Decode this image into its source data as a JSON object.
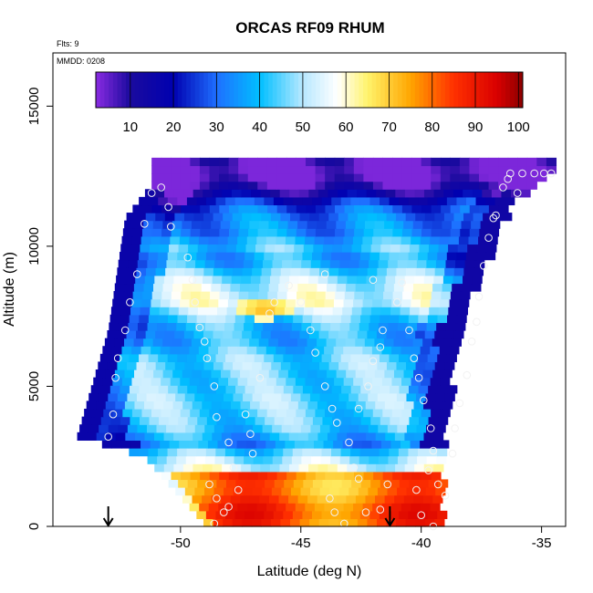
{
  "chart_data": {
    "type": "heatmap",
    "title": "ORCAS RF09 RHUM",
    "annotations": [
      "Flts: 9",
      "MMDD: 0208"
    ],
    "xlabel": "Latitude (deg N)",
    "ylabel": "Altitude (m)",
    "xlim": [
      -55.3,
      -34.0
    ],
    "ylim": [
      0,
      16900
    ],
    "x_ticks": [
      -50,
      -45,
      -40,
      -35
    ],
    "x_tick_labels": [
      "-50",
      "-45",
      "-40",
      "-35"
    ],
    "y_ticks": [
      0,
      5000,
      10000,
      15000
    ],
    "y_tick_labels": [
      "0",
      "5000",
      "10000",
      "15000"
    ],
    "colorbar": {
      "min": 2,
      "max": 101,
      "ticks": [
        10,
        20,
        30,
        40,
        50,
        60,
        70,
        80,
        90,
        100
      ],
      "tick_labels": [
        "10",
        "20",
        "30",
        "40",
        "50",
        "60",
        "70",
        "80",
        "90",
        "100"
      ],
      "stops": [
        {
          "v": 2,
          "color": "#8a2be2"
        },
        {
          "v": 10,
          "color": "#1a0a9e"
        },
        {
          "v": 20,
          "color": "#0000b0"
        },
        {
          "v": 30,
          "color": "#1e6fff"
        },
        {
          "v": 40,
          "color": "#00bfff"
        },
        {
          "v": 50,
          "color": "#b8e8ff"
        },
        {
          "v": 58,
          "color": "#ffffff"
        },
        {
          "v": 65,
          "color": "#fff36b"
        },
        {
          "v": 75,
          "color": "#ffa500"
        },
        {
          "v": 85,
          "color": "#ff3000"
        },
        {
          "v": 95,
          "color": "#d90000"
        },
        {
          "v": 101,
          "color": "#8b0000"
        }
      ]
    },
    "domain_envelope": {
      "left_boundary": [
        [
          -54.3,
          3200
        ],
        [
          -53.0,
          7000
        ],
        [
          -52.3,
          11000
        ],
        [
          -51.2,
          12200
        ]
      ],
      "right_boundary": [
        [
          -34.6,
          12700
        ],
        [
          -36.4,
          11500
        ],
        [
          -38.6,
          7000
        ],
        [
          -39.3,
          2000
        ],
        [
          -39.2,
          0
        ]
      ],
      "bottom_left": [
        [
          -54.3,
          3200
        ],
        [
          -51.5,
          2500
        ],
        [
          -48.9,
          0
        ]
      ]
    },
    "field_profile": {
      "altitude": [
        0,
        500,
        1000,
        1500,
        2000,
        2500,
        3000,
        3500,
        4000,
        4500,
        5000,
        5500,
        6000,
        6500,
        7000,
        7500,
        8000,
        8500,
        9000,
        9500,
        10000,
        10500,
        11000,
        11500,
        12000,
        12600
      ],
      "rhum": [
        82,
        86,
        88,
        78,
        62,
        50,
        30,
        38,
        45,
        52,
        48,
        42,
        40,
        38,
        44,
        50,
        54,
        48,
        44,
        40,
        48,
        35,
        28,
        22,
        12,
        5
      ]
    },
    "moist_layer_feature": {
      "lat": -46.5,
      "alt": 7800,
      "peak_rhum": 75
    },
    "flight_points": [
      [
        -53.0,
        3200
      ],
      [
        -52.8,
        4000
      ],
      [
        -52.7,
        5300
      ],
      [
        -52.6,
        6000
      ],
      [
        -52.3,
        7000
      ],
      [
        -52.1,
        8000
      ],
      [
        -51.8,
        9000
      ],
      [
        -51.5,
        10800
      ],
      [
        -51.2,
        11900
      ],
      [
        -50.8,
        12100
      ],
      [
        -50.5,
        11400
      ],
      [
        -50.4,
        10700
      ],
      [
        -49.7,
        9600
      ],
      [
        -49.5,
        8800
      ],
      [
        -49.4,
        8000
      ],
      [
        -49.2,
        7100
      ],
      [
        -49.0,
        6600
      ],
      [
        -48.9,
        6000
      ],
      [
        -48.6,
        5000
      ],
      [
        -48.5,
        3900
      ],
      [
        -48.0,
        3000
      ],
      [
        -47.8,
        2100
      ],
      [
        -48.8,
        1500
      ],
      [
        -48.5,
        1000
      ],
      [
        -48.2,
        500
      ],
      [
        -48.6,
        100
      ],
      [
        -48.0,
        700
      ],
      [
        -47.6,
        1300
      ],
      [
        -47.3,
        4000
      ],
      [
        -47.1,
        3300
      ],
      [
        -47.0,
        2600
      ],
      [
        -46.7,
        5300
      ],
      [
        -46.3,
        7600
      ],
      [
        -46.1,
        8000
      ],
      [
        -45.5,
        8600
      ],
      [
        -45.0,
        8000
      ],
      [
        -44.6,
        7000
      ],
      [
        -44.4,
        6200
      ],
      [
        -44.0,
        5000
      ],
      [
        -43.7,
        4200
      ],
      [
        -43.5,
        3700
      ],
      [
        -43.0,
        3000
      ],
      [
        -42.8,
        2100
      ],
      [
        -42.6,
        1700
      ],
      [
        -43.8,
        1000
      ],
      [
        -43.6,
        500
      ],
      [
        -43.2,
        100
      ],
      [
        -42.3,
        500
      ],
      [
        -42.6,
        4200
      ],
      [
        -42.2,
        5000
      ],
      [
        -42.0,
        5900
      ],
      [
        -41.7,
        6400
      ],
      [
        -41.6,
        7000
      ],
      [
        -41.0,
        8000
      ],
      [
        -40.8,
        8700
      ],
      [
        -40.5,
        7000
      ],
      [
        -40.3,
        6000
      ],
      [
        -40.1,
        5300
      ],
      [
        -39.9,
        4500
      ],
      [
        -39.6,
        3500
      ],
      [
        -39.5,
        2700
      ],
      [
        -39.7,
        2000
      ],
      [
        -40.2,
        1300
      ],
      [
        -41.4,
        1500
      ],
      [
        -41.7,
        600
      ],
      [
        -40.0,
        400
      ],
      [
        -39.5,
        0
      ],
      [
        -39.0,
        1100
      ],
      [
        -39.3,
        1500
      ],
      [
        -38.7,
        2600
      ],
      [
        -38.6,
        3500
      ],
      [
        -38.4,
        4400
      ],
      [
        -38.1,
        5400
      ],
      [
        -37.9,
        6600
      ],
      [
        -37.7,
        7300
      ],
      [
        -37.6,
        8200
      ],
      [
        -37.4,
        9300
      ],
      [
        -37.2,
        10300
      ],
      [
        -36.9,
        11100
      ],
      [
        -36.6,
        12100
      ],
      [
        -36.3,
        12600
      ],
      [
        -35.8,
        12600
      ],
      [
        -35.3,
        12600
      ],
      [
        -34.9,
        12600
      ],
      [
        -34.6,
        12600
      ],
      [
        -37.0,
        11000
      ],
      [
        -36.4,
        12400
      ],
      [
        -36.0,
        11900
      ],
      [
        -44.0,
        9000
      ],
      [
        -42.0,
        8800
      ]
    ],
    "arrows": [
      -53.0,
      -41.3
    ],
    "grid": false
  }
}
